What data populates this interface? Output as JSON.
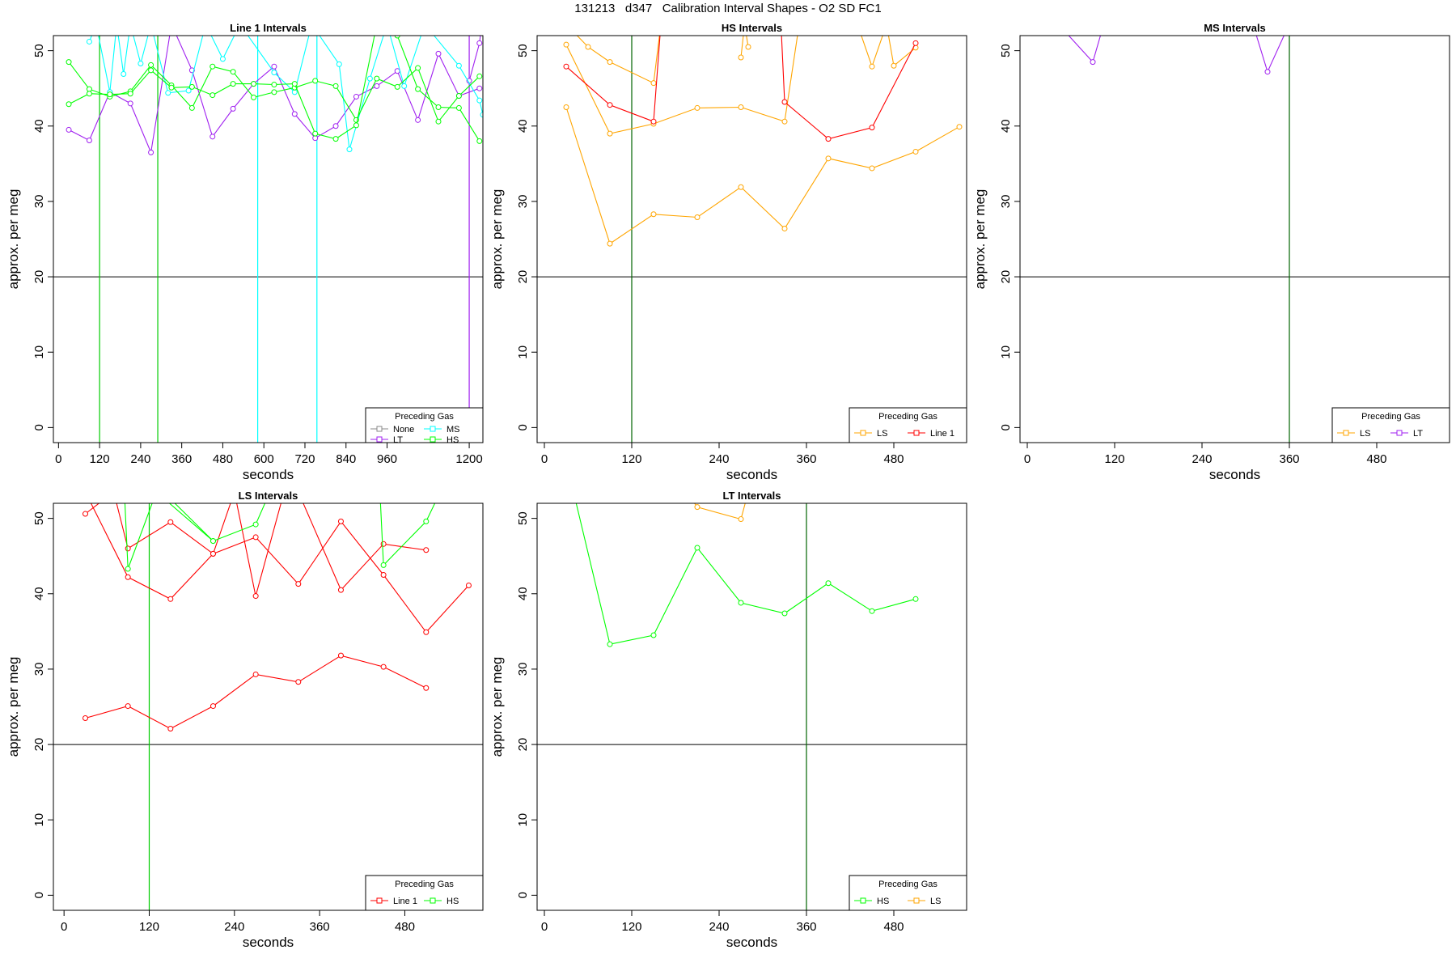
{
  "figure": {
    "title": "131213   d347   Calibration Interval Shapes - O2 SD FC1"
  },
  "chart_data": [
    {
      "type": "line",
      "title": "Line 1 Intervals",
      "xlabel": "seconds",
      "ylabel": "approx. per meg",
      "xlim": [
        -15,
        1240
      ],
      "ylim": [
        -2,
        52
      ],
      "xticks": [
        0,
        120,
        240,
        360,
        480,
        600,
        720,
        840,
        960,
        1200
      ],
      "yticks": [
        0,
        10,
        20,
        30,
        40,
        50
      ],
      "hline": 20,
      "vlines": [
        {
          "x": 120,
          "color": "#00cc00"
        },
        {
          "x": 290,
          "color": "#00cc00"
        },
        {
          "x": 582,
          "color": "#00ffff"
        },
        {
          "x": 755,
          "color": "#00ffff"
        },
        {
          "x": 1200,
          "color": "#a020f0"
        }
      ],
      "legend": {
        "title": "Preceding Gas",
        "position": "bottom-right",
        "columns": 2,
        "entries": [
          {
            "label": "None",
            "color": "#888888"
          },
          {
            "label": "MS",
            "color": "#00ffff"
          },
          {
            "label": "LT",
            "color": "#a020f0"
          },
          {
            "label": "HS",
            "color": "#00ff00"
          }
        ]
      },
      "series": [
        {
          "color": "#a020f0",
          "x": [
            30,
            90,
            150,
            210,
            270,
            330,
            390,
            450,
            510,
            570,
            630,
            690,
            750,
            810,
            870,
            930,
            990,
            1050,
            1110,
            1170,
            1230
          ],
          "y": [
            39.5,
            38.1,
            44.5,
            43.0,
            36.5,
            53.5,
            47.4,
            38.6,
            42.3,
            45.6,
            47.9,
            41.6,
            38.4,
            40.0,
            43.9,
            45.3,
            47.3,
            40.8,
            49.6,
            44.0,
            45.0
          ]
        },
        {
          "color": "#a020f0",
          "x": [
            1200,
            1230,
            1240
          ],
          "y": [
            46,
            51,
            55
          ]
        },
        {
          "color": "#00ffff",
          "x": [
            90,
            110,
            150,
            170,
            190,
            210,
            240,
            270,
            320,
            380,
            430,
            480,
            530,
            630,
            690,
            740,
            820,
            850,
            910,
            960,
            1010,
            1070,
            1170,
            1230,
            1240
          ],
          "y": [
            51.2,
            53.5,
            44.5,
            53.5,
            46.9,
            53.5,
            48.3,
            53.5,
            44.4,
            44.7,
            53.5,
            48.9,
            53.5,
            47.1,
            44.5,
            53.5,
            48.2,
            36.9,
            46.3,
            53.5,
            45.3,
            53.5,
            48.0,
            43.4,
            41.5
          ]
        },
        {
          "color": "#00ff00",
          "x": [
            30,
            90,
            150,
            210,
            270,
            330,
            390,
            450,
            510,
            570,
            630,
            690,
            750,
            810,
            870,
            930,
            990,
            1050,
            1110,
            1170,
            1230
          ],
          "y": [
            48.5,
            44.9,
            43.9,
            44.6,
            48.1,
            45.4,
            42.4,
            47.9,
            47.2,
            43.8,
            44.5,
            45.1,
            46.0,
            45.3,
            40.8,
            46.3,
            45.2,
            47.7,
            40.6,
            44.0,
            46.6
          ]
        },
        {
          "color": "#00ff00",
          "x": [
            30,
            90,
            150,
            210,
            270,
            330,
            390,
            450,
            510,
            570,
            630,
            690,
            750,
            810,
            870,
            930,
            990,
            1050,
            1110,
            1170,
            1230
          ],
          "y": [
            42.9,
            44.3,
            44.2,
            44.3,
            47.4,
            45.1,
            45.2,
            44.1,
            45.6,
            45.6,
            45.5,
            45.6,
            39.0,
            38.3,
            40.1,
            53.5,
            52.0,
            44.9,
            42.5,
            42.4,
            38.0
          ]
        }
      ]
    },
    {
      "type": "line",
      "title": "HS Intervals",
      "xlabel": "seconds",
      "ylabel": "approx. per meg",
      "xlim": [
        -10,
        580
      ],
      "ylim": [
        -2,
        52
      ],
      "xticks": [
        0,
        120,
        240,
        360,
        480
      ],
      "yticks": [
        0,
        10,
        20,
        30,
        40,
        50
      ],
      "hline": 20,
      "vlines": [
        {
          "x": 120,
          "color": "#006400"
        }
      ],
      "legend": {
        "title": "Preceding Gas",
        "position": "bottom-right",
        "columns": 2,
        "entries": [
          {
            "label": "LS",
            "color": "#ffa500"
          },
          {
            "label": "Line 1",
            "color": "#ff0000"
          }
        ]
      },
      "series": [
        {
          "color": "#ffa500",
          "x": [
            30,
            90,
            150,
            210,
            270,
            330,
            390,
            450,
            510,
            570
          ],
          "y": [
            42.5,
            24.4,
            28.3,
            27.9,
            31.9,
            26.4,
            35.7,
            34.4,
            36.6,
            39.9
          ]
        },
        {
          "color": "#ffa500",
          "x": [
            30,
            90,
            150,
            210,
            270,
            330,
            350
          ],
          "y": [
            50.8,
            39.0,
            40.3,
            42.4,
            42.5,
            40.6,
            53.5
          ]
        },
        {
          "color": "#ffa500",
          "x": [
            30,
            60,
            90,
            150,
            160
          ],
          "y": [
            53.5,
            50.5,
            48.5,
            45.7,
            53.5
          ]
        },
        {
          "color": "#ffa500",
          "x": [
            270,
            275,
            280
          ],
          "y": [
            49.1,
            53.5,
            50.5
          ]
        },
        {
          "color": "#ffa500",
          "x": [
            430,
            450,
            470,
            480,
            510
          ],
          "y": [
            53.5,
            47.9,
            53.5,
            48.0,
            50.4
          ]
        },
        {
          "color": "#ff0000",
          "x": [
            30,
            90,
            150,
            160
          ],
          "y": [
            47.9,
            42.8,
            40.6,
            53.5
          ]
        },
        {
          "color": "#ff0000",
          "x": [
            325,
            330,
            390,
            450,
            510
          ],
          "y": [
            53.5,
            43.2,
            38.3,
            39.8,
            51.0
          ]
        }
      ]
    },
    {
      "type": "line",
      "title": "MS Intervals",
      "xlabel": "seconds",
      "ylabel": "approx. per meg",
      "xlim": [
        -10,
        580
      ],
      "ylim": [
        -2,
        52
      ],
      "xticks": [
        0,
        120,
        240,
        360,
        480
      ],
      "yticks": [
        0,
        10,
        20,
        30,
        40,
        50
      ],
      "hline": 20,
      "vlines": [
        {
          "x": 360,
          "color": "#006400"
        }
      ],
      "legend": {
        "title": "Preceding Gas",
        "position": "bottom-right",
        "columns": 2,
        "entries": [
          {
            "label": "LS",
            "color": "#ffa500"
          },
          {
            "label": "LT",
            "color": "#a020f0"
          }
        ]
      },
      "series": [
        {
          "color": "#a020f0",
          "x": [
            55,
            90,
            105
          ],
          "y": [
            52.2,
            48.5,
            53.5
          ]
        },
        {
          "color": "#a020f0",
          "x": [
            310,
            330,
            355
          ],
          "y": [
            53.5,
            47.2,
            52.5
          ]
        }
      ]
    },
    {
      "type": "line",
      "title": "LS Intervals",
      "xlabel": "seconds",
      "ylabel": "approx. per meg",
      "xlim": [
        -15,
        590
      ],
      "ylim": [
        -2,
        52
      ],
      "xticks": [
        0,
        120,
        240,
        360,
        480
      ],
      "yticks": [
        0,
        10,
        20,
        30,
        40,
        50
      ],
      "hline": 20,
      "vlines": [
        {
          "x": 120,
          "color": "#00cc00"
        }
      ],
      "legend": {
        "title": "Preceding Gas",
        "position": "bottom-right",
        "columns": 2,
        "entries": [
          {
            "label": "Line 1",
            "color": "#ff0000"
          },
          {
            "label": "HS",
            "color": "#00ff00"
          }
        ]
      },
      "series": [
        {
          "color": "#ff0000",
          "x": [
            30,
            90,
            150,
            210,
            270,
            330,
            390,
            450,
            510
          ],
          "y": [
            23.5,
            25.1,
            22.1,
            25.1,
            29.3,
            28.3,
            31.8,
            30.3,
            27.5
          ]
        },
        {
          "color": "#ff0000",
          "x": [
            30,
            90,
            150,
            210,
            270,
            330,
            390,
            450,
            510,
            570
          ],
          "y": [
            53.5,
            42.2,
            39.3,
            45.3,
            47.5,
            41.3,
            49.6,
            42.5,
            34.9,
            41.1
          ]
        },
        {
          "color": "#ff0000",
          "x": [
            30,
            70,
            90,
            150,
            210,
            240,
            270,
            310,
            330,
            390,
            450,
            510
          ],
          "y": [
            50.6,
            53.5,
            46.0,
            49.5,
            45.3,
            53.5,
            39.7,
            53.5,
            53.5,
            40.5,
            46.6,
            45.8
          ]
        },
        {
          "color": "#00ff00",
          "x": [
            85,
            90,
            130,
            210,
            270,
            290
          ],
          "y": [
            53.5,
            43.3,
            53.5,
            47.0,
            49.2,
            53.5
          ]
        },
        {
          "color": "#00ff00",
          "x": [
            140,
            210
          ],
          "y": [
            53.5,
            47.0
          ]
        },
        {
          "color": "#00ff00",
          "x": [
            445,
            450,
            510,
            530
          ],
          "y": [
            53.5,
            43.8,
            49.6,
            53.5
          ]
        }
      ]
    },
    {
      "type": "line",
      "title": "LT Intervals",
      "xlabel": "seconds",
      "ylabel": "approx. per meg",
      "xlim": [
        -10,
        580
      ],
      "ylim": [
        -2,
        52
      ],
      "xticks": [
        0,
        120,
        240,
        360,
        480
      ],
      "yticks": [
        0,
        10,
        20,
        30,
        40,
        50
      ],
      "hline": 20,
      "vlines": [
        {
          "x": 360,
          "color": "#006400"
        }
      ],
      "legend": {
        "title": "Preceding Gas",
        "position": "bottom-right",
        "columns": 2,
        "entries": [
          {
            "label": "HS",
            "color": "#00ff00"
          },
          {
            "label": "LS",
            "color": "#ffa500"
          }
        ]
      },
      "series": [
        {
          "color": "#00ff00",
          "x": [
            40,
            90,
            150,
            210,
            270,
            330,
            390,
            450,
            510
          ],
          "y": [
            53.5,
            33.3,
            34.5,
            46.1,
            38.8,
            37.4,
            41.4,
            37.7,
            39.3
          ]
        },
        {
          "color": "#ffa500",
          "x": [
            195,
            210,
            270,
            280
          ],
          "y": [
            53.5,
            51.5,
            49.9,
            53.5
          ]
        }
      ]
    }
  ]
}
